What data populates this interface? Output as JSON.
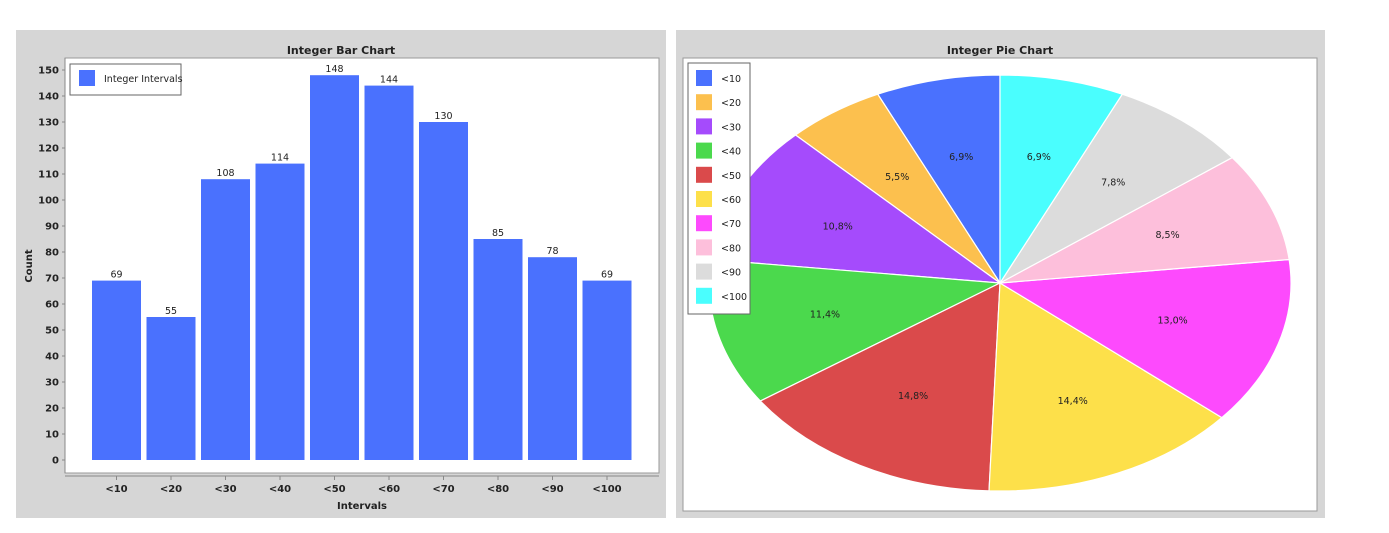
{
  "chart_data": [
    {
      "type": "bar",
      "title": "Integer Bar Chart",
      "xlabel": "Intervals",
      "ylabel": "Count",
      "categories": [
        "<10",
        "<20",
        "<30",
        "<40",
        "<50",
        "<60",
        "<70",
        "<80",
        "<90",
        "<100"
      ],
      "series": [
        {
          "name": "Integer Intervals",
          "values": [
            69,
            55,
            108,
            114,
            148,
            144,
            130,
            85,
            78,
            69
          ]
        }
      ],
      "ylim": [
        0,
        150
      ],
      "yticks": [
        0,
        10,
        20,
        30,
        40,
        50,
        60,
        70,
        80,
        90,
        100,
        110,
        120,
        130,
        140,
        150
      ],
      "legend": "top-left",
      "color": "#4a71fe",
      "grid": false
    },
    {
      "type": "pie",
      "title": "Integer Pie Chart",
      "legend": "top-left",
      "slices": [
        {
          "label": "<10",
          "pct_label": "6,9%",
          "value": 6.9,
          "color": "#4a71fe"
        },
        {
          "label": "<20",
          "pct_label": "5,5%",
          "value": 5.5,
          "color": "#fcc04e"
        },
        {
          "label": "<30",
          "pct_label": "10,8%",
          "value": 10.8,
          "color": "#a54bfc"
        },
        {
          "label": "<40",
          "pct_label": "11,4%",
          "value": 11.4,
          "color": "#4bd94d"
        },
        {
          "label": "<50",
          "pct_label": "14,8%",
          "value": 14.8,
          "color": "#da4a4b"
        },
        {
          "label": "<60",
          "pct_label": "14,4%",
          "value": 14.4,
          "color": "#fde04a"
        },
        {
          "label": "<70",
          "pct_label": "13,0%",
          "value": 13.0,
          "color": "#fd4afd"
        },
        {
          "label": "<80",
          "pct_label": "8,5%",
          "value": 8.5,
          "color": "#fdbfdb"
        },
        {
          "label": "<90",
          "pct_label": "7,8%",
          "value": 7.8,
          "color": "#dcdcdc"
        },
        {
          "label": "<100",
          "pct_label": "6,9%",
          "value": 6.9,
          "color": "#4afefe"
        }
      ]
    }
  ]
}
